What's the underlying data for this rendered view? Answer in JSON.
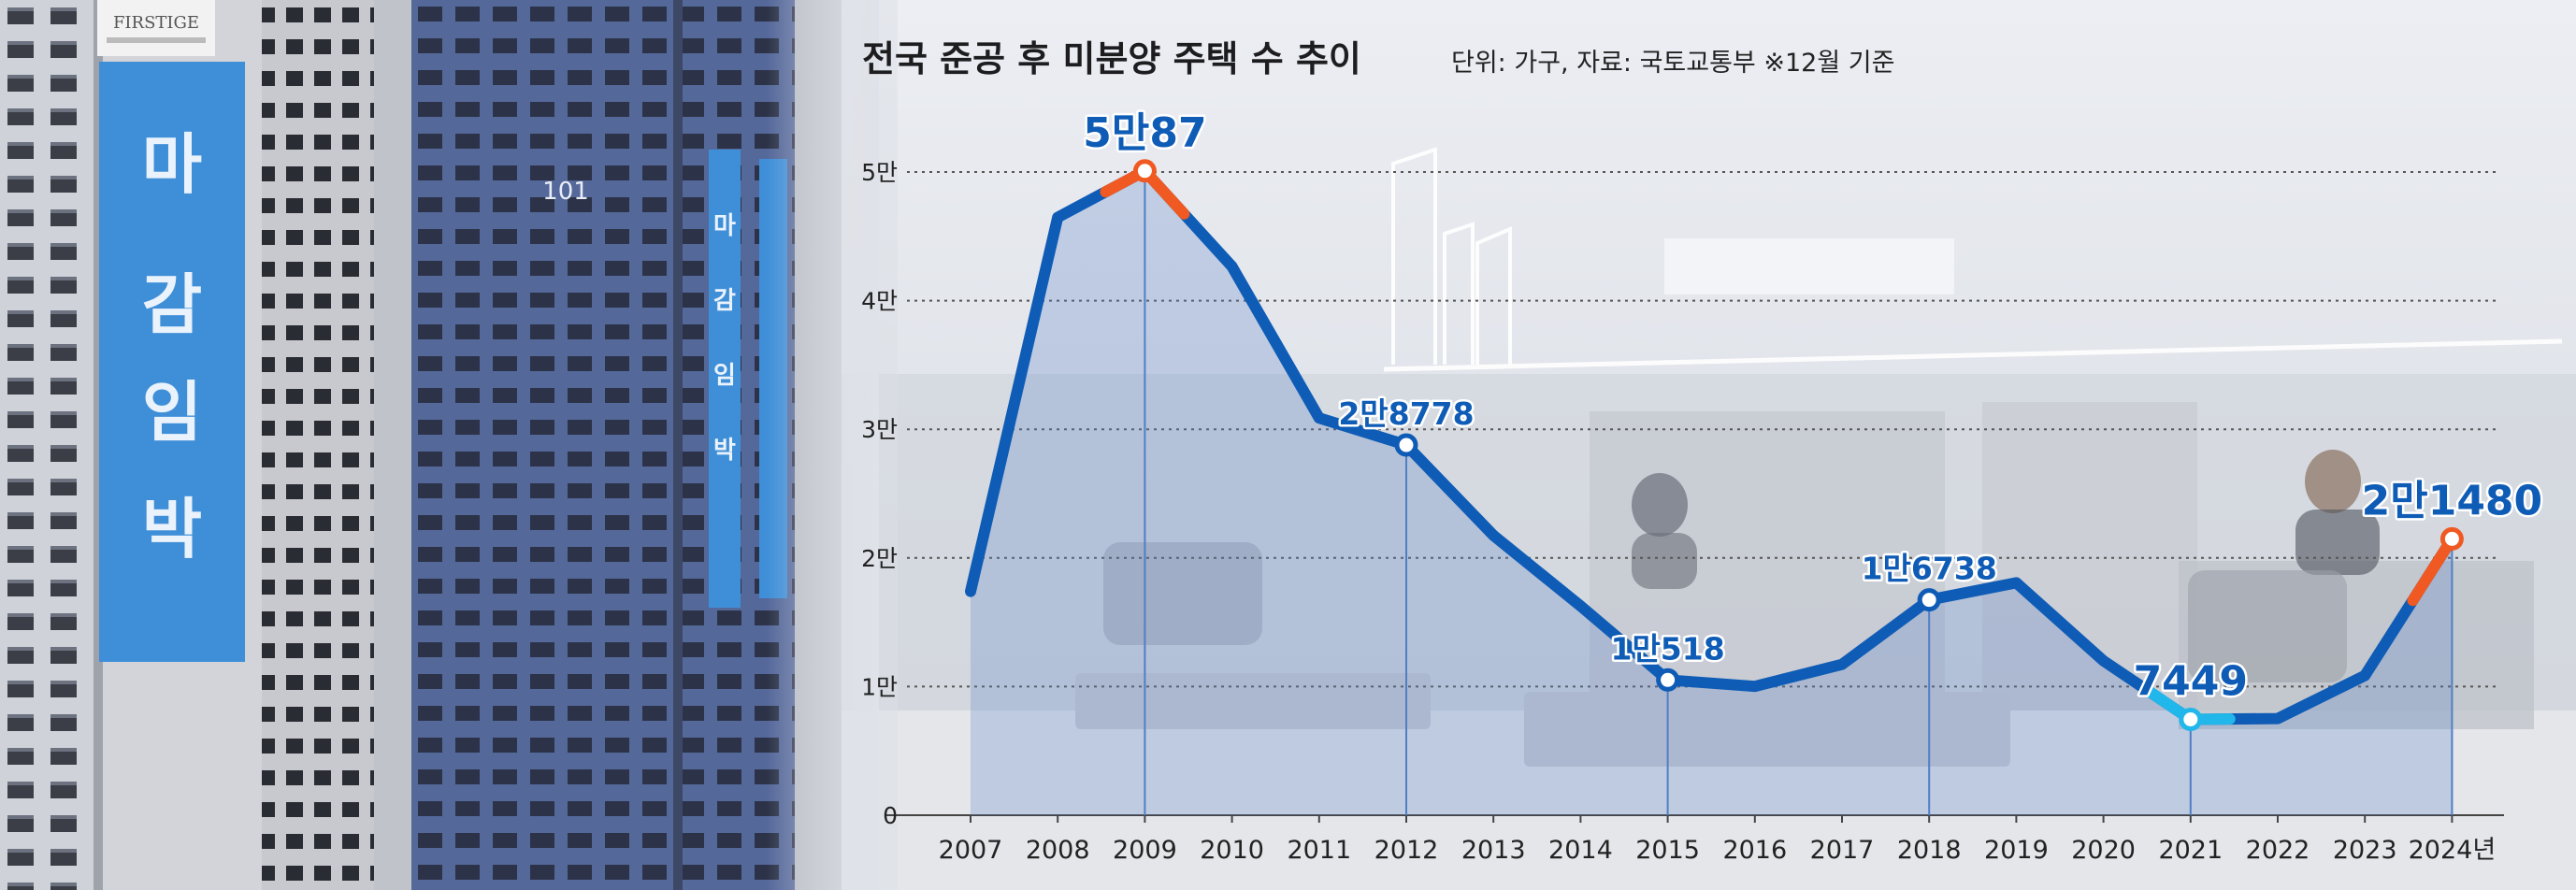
{
  "photo": {
    "banner_text": [
      "마",
      "감",
      "임",
      "박"
    ],
    "tower_number": "101",
    "brand_sign": "FIRSTIGE"
  },
  "chart_data": {
    "type": "line",
    "title": "전국 준공 후 미분양 주택 수 추이",
    "subtitle": "단위: 가구, 자료: 국토교통부 ※12월 기준",
    "xlabel": "",
    "ylabel": "",
    "x": [
      "2007",
      "2008",
      "2009",
      "2010",
      "2011",
      "2012",
      "2013",
      "2014",
      "2015",
      "2016",
      "2017",
      "2018",
      "2019",
      "2020",
      "2021",
      "2022",
      "2023",
      "2024년"
    ],
    "values": [
      17395,
      46476,
      50087,
      42655,
      30881,
      28778,
      21751,
      16267,
      10518,
      10011,
      11720,
      16738,
      18065,
      12006,
      7449,
      7518,
      10857,
      21480
    ],
    "y_ticks": [
      "0",
      "1만",
      "2만",
      "3만",
      "4만",
      "5만"
    ],
    "y_tick_values": [
      0,
      10000,
      20000,
      30000,
      40000,
      50000
    ],
    "ylim": [
      0,
      50000
    ],
    "grid": true,
    "annotations": [
      {
        "index": 2,
        "label": "5만87",
        "highlight": "orange"
      },
      {
        "index": 5,
        "label": "2만8778",
        "highlight": "none"
      },
      {
        "index": 8,
        "label": "1만518",
        "highlight": "none"
      },
      {
        "index": 11,
        "label": "1만6738",
        "highlight": "none"
      },
      {
        "index": 14,
        "label": "7449",
        "highlight": "cyan"
      },
      {
        "index": 17,
        "label": "2만1480",
        "highlight": "orange"
      }
    ],
    "colors": {
      "line": "#0f5cb6",
      "accent_orange": "#f05a22",
      "accent_cyan": "#22b7ea",
      "label": "#0f5cb6",
      "area": "#5c86c9"
    }
  }
}
